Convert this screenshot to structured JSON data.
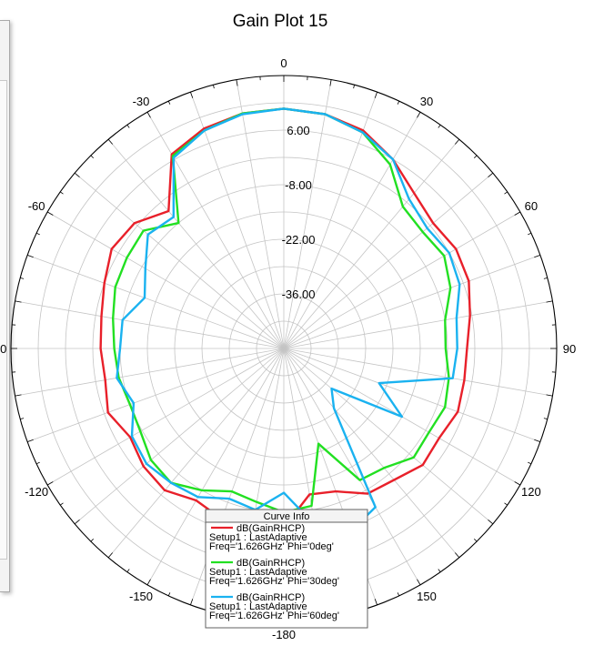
{
  "chart_data": {
    "type": "polar-line",
    "title": "Gain Plot 15",
    "angle_ticks": [
      {
        "deg": 0,
        "label": "0"
      },
      {
        "deg": 30,
        "label": "30"
      },
      {
        "deg": 60,
        "label": "60"
      },
      {
        "deg": 90,
        "label": "90"
      },
      {
        "deg": 120,
        "label": "120"
      },
      {
        "deg": 150,
        "label": "150"
      },
      {
        "deg": 180,
        "label": "-180"
      },
      {
        "deg": -150,
        "label": "-150"
      },
      {
        "deg": -120,
        "label": "-120"
      },
      {
        "deg": -90,
        "label": "-90"
      },
      {
        "deg": -60,
        "label": "-60"
      },
      {
        "deg": -30,
        "label": "-30"
      }
    ],
    "radial_range": [
      -50,
      20
    ],
    "radial_ticks": [
      {
        "value": 6,
        "label": "6.00"
      },
      {
        "value": -8,
        "label": "-8.00"
      },
      {
        "value": -22,
        "label": "-22.00"
      },
      {
        "value": -36,
        "label": "-36.00"
      }
    ],
    "legend_title": "Curve Info",
    "series": [
      {
        "name": "dB(GainRHCP)",
        "setup": "Setup1 : LastAdaptive",
        "freq": "Freq='1.626GHz' Phi='0deg'",
        "color": "#e8202a",
        "theta_deg": [
          0,
          10,
          20,
          30,
          40,
          50,
          60,
          70,
          80,
          90,
          100,
          110,
          120,
          130,
          140,
          150,
          160,
          170,
          180,
          190,
          200,
          210,
          220,
          230,
          240,
          250,
          260,
          270,
          280,
          290,
          300,
          310,
          320,
          330,
          340,
          350
        ],
        "gain_db": [
          11.5,
          11.0,
          9.5,
          6.0,
          2.0,
          0.0,
          1.0,
          0.5,
          -1.5,
          -3.0,
          -3.0,
          -2.5,
          -4.0,
          -3.5,
          -6.0,
          -7.0,
          -11.0,
          -12.0,
          -4.0,
          -2.0,
          -3.5,
          -5.0,
          -2.5,
          -3.0,
          -4.5,
          -2.0,
          -3.5,
          -3.0,
          -2.5,
          -1.0,
          1.0,
          0.0,
          -4.0,
          7.5,
          10.0,
          11.2
        ]
      },
      {
        "name": "dB(GainRHCP)",
        "setup": "Setup1 : LastAdaptive",
        "freq": "Freq='1.626GHz' Phi='30deg'",
        "color": "#22e022",
        "theta_deg": [
          0,
          10,
          20,
          30,
          40,
          50,
          60,
          70,
          80,
          90,
          100,
          110,
          120,
          130,
          140,
          150,
          160,
          170,
          180,
          190,
          200,
          210,
          220,
          230,
          240,
          250,
          260,
          270,
          280,
          290,
          300,
          310,
          320,
          330,
          340,
          350
        ],
        "gain_db": [
          11.5,
          11.0,
          9.0,
          4.5,
          -2.5,
          -3.5,
          -2.5,
          -4.5,
          -8.0,
          -8.5,
          -7.0,
          -6.0,
          -7.0,
          -6.5,
          -10.0,
          -11.0,
          -24.0,
          -9.0,
          -8.0,
          -10.0,
          -11.0,
          -8.0,
          -5.0,
          -5.5,
          -7.5,
          -8.0,
          -7.0,
          -6.5,
          -5.5,
          -4.0,
          -3.5,
          -3.0,
          -8.0,
          7.0,
          9.5,
          11.2
        ]
      },
      {
        "name": "dB(GainRHCP)",
        "setup": "Setup1 : LastAdaptive",
        "freq": "Freq='1.626GHz' Phi='60deg'",
        "color": "#1ab2f0",
        "theta_deg": [
          0,
          10,
          20,
          30,
          40,
          50,
          60,
          70,
          80,
          90,
          100,
          110,
          120,
          130,
          140,
          150,
          160,
          170,
          180,
          190,
          200,
          210,
          220,
          230,
          240,
          250,
          260,
          270,
          280,
          290,
          300,
          310,
          320,
          330,
          340,
          350
        ],
        "gain_db": [
          11.5,
          11.0,
          9.0,
          6.0,
          0.0,
          -2.0,
          -1.0,
          -2.0,
          -5.0,
          -5.5,
          -6.0,
          -24.0,
          -15.0,
          -34.0,
          -30.0,
          -3.0,
          0.0,
          -4.0,
          -13.0,
          -8.0,
          -9.0,
          -6.0,
          -5.0,
          -4.0,
          -5.0,
          -9.0,
          -6.5,
          -8.0,
          -8.0,
          -12.0,
          -9.0,
          -4.5,
          -6.0,
          6.5,
          9.5,
          11.0
        ]
      }
    ]
  },
  "colors": {
    "grid": "#c4c4c4",
    "outer_ring": "#000000"
  }
}
